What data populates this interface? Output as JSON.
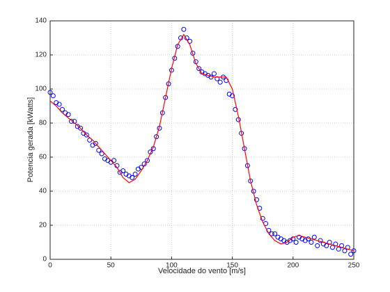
{
  "chart_data": {
    "type": "scatter",
    "xlabel": "Velocidade do vento [m/s]",
    "ylabel": "Potencia gerada [kWatts]",
    "xlim": [
      0,
      250
    ],
    "ylim": [
      0,
      140
    ],
    "xticks": [
      0,
      50,
      100,
      150,
      200,
      250
    ],
    "yticks": [
      0,
      20,
      40,
      60,
      80,
      100,
      120,
      140
    ],
    "grid": true,
    "series": [
      {
        "mode": "markers",
        "color": "#0000ff",
        "x": [
          0,
          2.5,
          5,
          7.5,
          10,
          12.5,
          15,
          17.5,
          20,
          22.5,
          25,
          27.5,
          30,
          32.5,
          35,
          37.5,
          40,
          42.5,
          45,
          47.5,
          50,
          52.5,
          55,
          57.5,
          60,
          62.5,
          65,
          67.5,
          70,
          72.5,
          75,
          77.5,
          80,
          82.5,
          85,
          87.5,
          90,
          92.5,
          95,
          97.5,
          100,
          102.5,
          105,
          107.5,
          110,
          112.5,
          115,
          117.5,
          120,
          122.5,
          125,
          127.5,
          130,
          132.5,
          135,
          137.5,
          140,
          142.5,
          145,
          147.5,
          150,
          152.5,
          155,
          157.5,
          160,
          162.5,
          165,
          167.5,
          170,
          172.5,
          175,
          177.5,
          180,
          182.5,
          185,
          187.5,
          190,
          192.5,
          195,
          197.5,
          200,
          202.5,
          205,
          207.5,
          210,
          212.5,
          215,
          217.5,
          220,
          222.5,
          225,
          227.5,
          230,
          232.5,
          235,
          237.5,
          240,
          242.5,
          245,
          247.5,
          250
        ],
        "values": [
          98,
          96,
          92,
          91,
          88,
          86,
          85,
          81,
          81,
          78,
          77,
          74,
          73,
          70,
          67,
          68,
          64,
          62,
          59,
          58,
          57,
          58,
          55,
          51,
          52,
          50,
          49,
          48,
          50,
          53,
          54,
          56,
          58,
          63,
          65,
          72,
          77,
          86,
          95,
          103,
          111,
          118,
          125,
          130,
          135,
          130,
          128,
          121,
          116,
          112,
          110,
          109,
          108,
          107,
          109,
          106,
          104,
          107,
          105,
          97,
          96,
          88,
          82,
          74,
          65,
          55,
          46,
          40,
          35,
          30,
          24,
          21,
          17,
          15,
          15,
          13,
          12,
          11,
          10,
          11,
          12,
          10,
          13,
          12,
          11,
          12,
          10,
          13,
          8,
          11,
          9,
          8,
          10,
          7,
          9,
          6,
          8,
          5,
          7,
          3,
          5
        ]
      },
      {
        "mode": "line",
        "color": "#ff0000",
        "x": [
          0,
          5,
          10,
          15,
          20,
          25,
          30,
          35,
          40,
          45,
          50,
          55,
          60,
          65,
          70,
          75,
          80,
          85,
          90,
          95,
          100,
          105,
          110,
          115,
          120,
          125,
          130,
          135,
          140,
          145,
          150,
          155,
          160,
          165,
          170,
          175,
          180,
          185,
          190,
          195,
          200,
          205,
          210,
          215,
          220,
          225,
          230,
          235,
          240,
          245,
          250
        ],
        "values": [
          93,
          90,
          86,
          83,
          80,
          77,
          73,
          70,
          66,
          62,
          58,
          54,
          48,
          45,
          47,
          52,
          58,
          66,
          78,
          95,
          112,
          126,
          132,
          126,
          115,
          109,
          108,
          107,
          107,
          107,
          100,
          84,
          65,
          46,
          32,
          22,
          15,
          11,
          9,
          10,
          13,
          14,
          13,
          12,
          11,
          10,
          9,
          8,
          7,
          6,
          5
        ]
      }
    ]
  }
}
